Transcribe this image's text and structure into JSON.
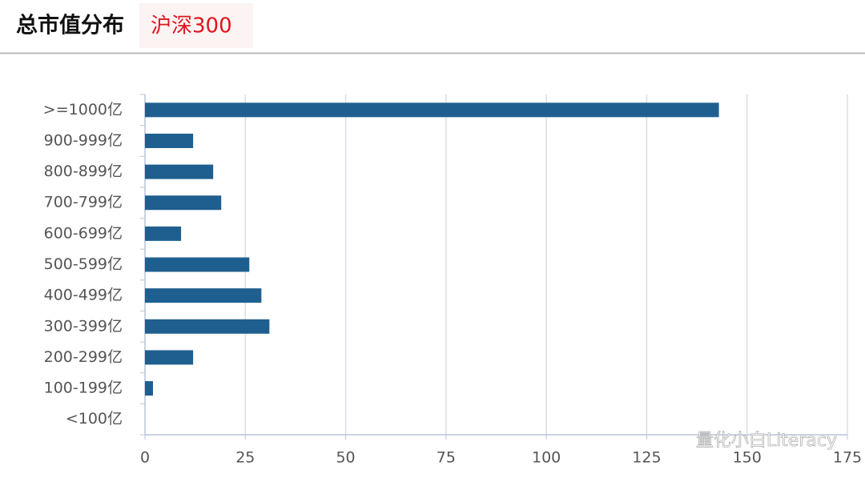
{
  "chart_data": {
    "type": "bar",
    "orientation": "horizontal",
    "title": "总市值分布",
    "subtitle": "沪深300",
    "categories": [
      ">=1000亿",
      "900-999亿",
      "800-899亿",
      "700-799亿",
      "600-699亿",
      "500-599亿",
      "400-499亿",
      "300-399亿",
      "200-299亿",
      "100-199亿",
      "<100亿"
    ],
    "values": [
      143,
      12,
      17,
      19,
      9,
      26,
      29,
      31,
      12,
      2,
      0
    ],
    "color": "#1f5f8f",
    "xlim": [
      0,
      175
    ],
    "xticks": [
      0,
      25,
      50,
      75,
      100,
      125,
      150,
      175
    ],
    "grid": true,
    "watermark": "量化小白Literacy"
  }
}
